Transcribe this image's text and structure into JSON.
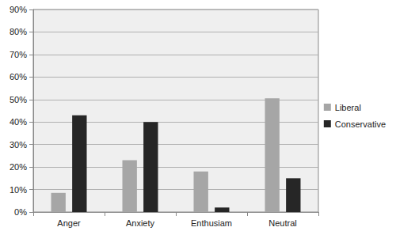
{
  "chart_data": {
    "type": "bar",
    "categories": [
      "Anger",
      "Anxiety",
      "Enthusiam",
      "Neutral"
    ],
    "series": [
      {
        "name": "Liberal",
        "color": "#a6a6a6",
        "values": [
          8.5,
          23,
          18,
          50.5
        ]
      },
      {
        "name": "Conservative",
        "color": "#262626",
        "values": [
          43,
          40,
          2,
          15
        ]
      }
    ],
    "ylim": [
      0,
      90
    ],
    "yticks": [
      {
        "value": 0,
        "label": "0%"
      },
      {
        "value": 10,
        "label": "10%"
      },
      {
        "value": 20,
        "label": "20%"
      },
      {
        "value": 30,
        "label": "30%"
      },
      {
        "value": 40,
        "label": "40%"
      },
      {
        "value": 50,
        "label": "50%"
      },
      {
        "value": 60,
        "label": "60%"
      },
      {
        "value": 70,
        "label": "70%"
      },
      {
        "value": 80,
        "label": "80%"
      },
      {
        "value": 90,
        "label": "90%"
      }
    ],
    "grid": true,
    "legend": "right"
  }
}
